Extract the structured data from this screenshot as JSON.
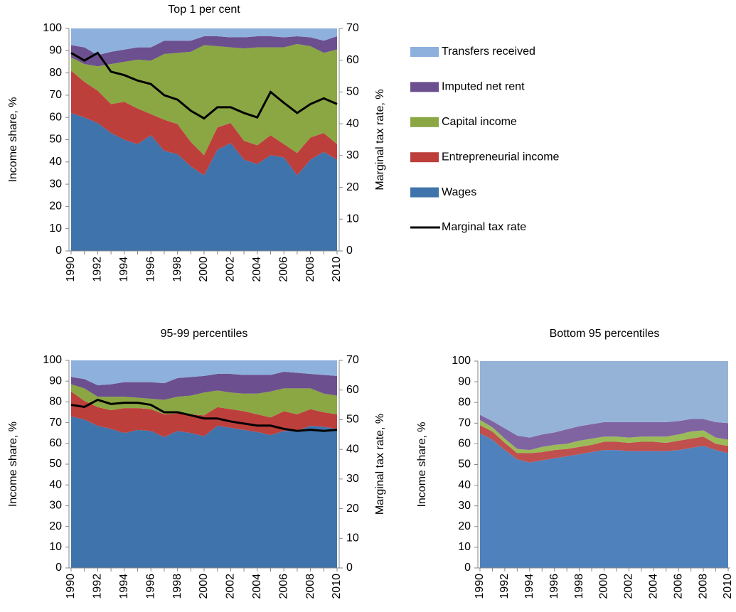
{
  "chart_data": [
    {
      "type": "stacked-area",
      "title": "Top  1 per cent",
      "y_label": "Income share, %",
      "y2_label": "Marginal tax rate, %",
      "legend": "right",
      "categories": [
        "1990",
        null,
        "1992",
        null,
        "1994",
        null,
        "1996",
        null,
        "1998",
        null,
        "2000",
        null,
        "2002",
        null,
        "2004",
        null,
        "2006",
        null,
        "2008",
        null,
        "2010"
      ],
      "ylim": [
        0,
        100
      ],
      "yticks": [
        0,
        10,
        20,
        30,
        40,
        50,
        60,
        70,
        80,
        90,
        100
      ],
      "y2lim": [
        0,
        70
      ],
      "y2ticks": [
        0,
        10,
        20,
        30,
        40,
        50,
        60,
        70
      ],
      "series": [
        {
          "name": "Wages",
          "color": "#3f73ab",
          "values": [
            62,
            60,
            57.5,
            53,
            50,
            48,
            52,
            45,
            43.5,
            38,
            34,
            45.5,
            48.5,
            41,
            39,
            43,
            42,
            34,
            41,
            44.5,
            41
          ]
        },
        {
          "name": "Entrepreneurial income",
          "color": "#bd3f3c",
          "values": [
            19,
            16,
            14.5,
            13,
            17,
            16,
            9.5,
            14,
            13.5,
            11,
            9,
            10,
            9,
            8.5,
            8.5,
            9,
            6,
            10,
            10,
            8.5,
            7
          ]
        },
        {
          "name": "Capital income",
          "color": "#8aa743",
          "values": [
            6,
            8,
            11,
            18,
            18,
            22,
            24,
            29.5,
            32,
            40.5,
            49.5,
            36.5,
            34,
            41.5,
            44,
            39.5,
            43.5,
            49,
            41,
            36,
            42.5
          ]
        },
        {
          "name": "Imputed net rent",
          "color": "#6c4f8e",
          "values": [
            5.5,
            7.5,
            5,
            5.5,
            5.5,
            5.5,
            6,
            6,
            5.5,
            5,
            4,
            4.5,
            4.5,
            5,
            5,
            5,
            4.5,
            3.5,
            4,
            5.5,
            6
          ]
        },
        {
          "name": "Transfers received",
          "color": "#8eb0dc",
          "values": [
            7.5,
            8.5,
            12,
            10.5,
            9.5,
            8.5,
            8.5,
            5.5,
            5.5,
            5.5,
            3.5,
            3.5,
            4,
            4,
            3.5,
            3.5,
            4,
            3.5,
            4,
            5.5,
            3.5
          ]
        },
        {
          "name": "Marginal tax rate",
          "color": "#000000",
          "axis": "y2",
          "values": [
            62.3,
            59.9,
            62.3,
            56.4,
            55.3,
            53.6,
            52.5,
            49,
            47.6,
            44.1,
            41.7,
            45.2,
            45.2,
            43.4,
            42,
            50,
            46.6,
            43.4,
            46.2,
            48,
            46.2
          ]
        }
      ]
    },
    {
      "type": "stacked-area",
      "title": "95-99 percentiles",
      "y_label": "Income share, %",
      "y2_label": "Marginal tax rate, %",
      "categories": [
        "1990",
        null,
        "1992",
        null,
        "1994",
        null,
        "1996",
        null,
        "1998",
        null,
        "2000",
        null,
        "2002",
        null,
        "2004",
        null,
        "2006",
        null,
        "2008",
        null,
        "2010"
      ],
      "ylim": [
        0,
        100
      ],
      "yticks": [
        0,
        10,
        20,
        30,
        40,
        50,
        60,
        70,
        80,
        90,
        100
      ],
      "y2lim": [
        0,
        70
      ],
      "y2ticks": [
        0,
        10,
        20,
        30,
        40,
        50,
        60,
        70
      ],
      "series": [
        {
          "color": "#3f73ab",
          "values": [
            73,
            71.5,
            68.5,
            67,
            65,
            66.5,
            66,
            63,
            66,
            65,
            63.5,
            68.5,
            67.5,
            66.5,
            65.5,
            64,
            66,
            66,
            68.5,
            68,
            67
          ]
        },
        {
          "color": "#bd3f3c",
          "values": [
            12,
            9,
            9,
            9,
            12,
            10.5,
            10.5,
            11,
            8.5,
            9,
            10,
            9,
            9,
            9,
            8.5,
            8.5,
            9.5,
            8,
            8,
            7,
            7
          ]
        },
        {
          "color": "#8aa743",
          "values": [
            3.5,
            6,
            5,
            6.5,
            5.5,
            5,
            5,
            7,
            8,
            9,
            11,
            8,
            8,
            8.5,
            10,
            12.5,
            11,
            12.5,
            10,
            9,
            9
          ]
        },
        {
          "color": "#6c4f8e",
          "values": [
            3.5,
            4.5,
            5.5,
            6,
            7,
            7.5,
            8,
            8,
            9,
            9,
            8,
            8,
            9,
            9,
            9,
            8,
            8,
            7.5,
            7,
            9,
            9.5
          ]
        },
        {
          "color": "#8eb0dc",
          "values": [
            8,
            9,
            12,
            11.5,
            10.5,
            10.5,
            10.5,
            11,
            8.5,
            8,
            7.5,
            6.5,
            6.5,
            7,
            7,
            7,
            5.5,
            6,
            6.5,
            7,
            7.5
          ]
        },
        {
          "color": "#000000",
          "axis": "y2",
          "values": [
            55,
            54.3,
            56.7,
            55.3,
            55.7,
            55.7,
            55,
            52.5,
            52.5,
            51.5,
            50.4,
            50.4,
            49.4,
            48.7,
            48,
            48,
            46.9,
            46.2,
            46.6,
            46.2,
            46.6
          ]
        }
      ]
    },
    {
      "type": "stacked-area",
      "title": "Bottom 95 percentiles",
      "y_label": "Income share, %",
      "categories": [
        "1990",
        null,
        "1992",
        null,
        "1994",
        null,
        "1996",
        null,
        "1998",
        null,
        "2000",
        null,
        "2002",
        null,
        "2004",
        null,
        "2006",
        null,
        "2008",
        null,
        "2010"
      ],
      "ylim": [
        0,
        100
      ],
      "yticks": [
        0,
        10,
        20,
        30,
        40,
        50,
        60,
        70,
        80,
        90,
        100
      ],
      "series": [
        {
          "color": "#4f81bd",
          "values": [
            65,
            62,
            57,
            52.5,
            51,
            52,
            53,
            54,
            55,
            56,
            57,
            57,
            56.5,
            56.5,
            56.5,
            56.5,
            57,
            58,
            59,
            57,
            55.5
          ]
        },
        {
          "color": "#c0504d",
          "values": [
            4,
            4,
            3.5,
            3,
            4.5,
            4,
            4,
            3.5,
            3.5,
            3.5,
            4,
            4,
            4,
            4.5,
            4.5,
            4,
            4.5,
            4.5,
            4.5,
            3,
            3.5
          ]
        },
        {
          "color": "#9bbb59",
          "values": [
            2.5,
            2,
            2,
            2,
            1.5,
            2.5,
            2.5,
            2.5,
            3,
            3,
            2.5,
            2.5,
            2.5,
            2.5,
            2.5,
            3,
            3,
            3.5,
            3,
            3,
            3
          ]
        },
        {
          "color": "#8064a2",
          "values": [
            2.5,
            3,
            5,
            6.5,
            6,
            6,
            6,
            7,
            7,
            7,
            7,
            7,
            7.5,
            7,
            7,
            7,
            6.5,
            6,
            5.5,
            7.5,
            8
          ]
        },
        {
          "color": "#95b3d7",
          "values": [
            26,
            29,
            32.5,
            36,
            37,
            35.5,
            34.5,
            33,
            31.5,
            30.5,
            29.5,
            29.5,
            29.5,
            29.5,
            29.5,
            29.5,
            29,
            28,
            28,
            29.5,
            30
          ]
        }
      ]
    }
  ]
}
